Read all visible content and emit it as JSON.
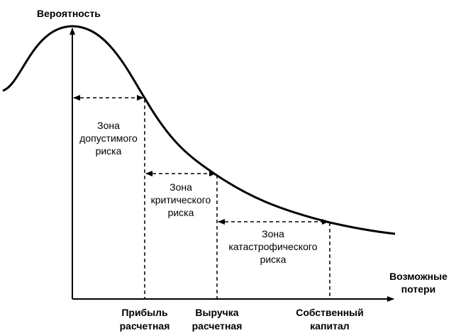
{
  "y_axis_label": "Вероятность",
  "x_axis_label": [
    "Возможные",
    "потери"
  ],
  "x_marks": [
    [
      "Прибыль",
      "расчетная"
    ],
    [
      "Выручка",
      "расчетная"
    ],
    [
      "Собственный",
      "капитал"
    ]
  ],
  "zones": [
    [
      "Зона",
      "допустимого",
      "риска"
    ],
    [
      "Зона",
      "критического",
      "риска"
    ],
    [
      "Зона",
      "катастрофического",
      "риска"
    ]
  ]
}
